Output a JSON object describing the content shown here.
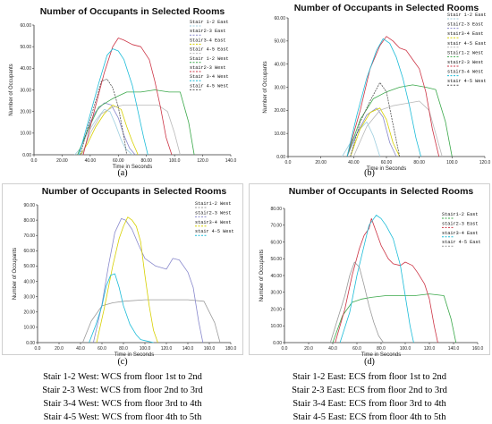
{
  "chart_data": [
    {
      "id": "a",
      "caption": "(a)",
      "type": "line",
      "title": "Number of Occupants in Selected Rooms",
      "xlabel": "Time in Seconds",
      "ylabel": "Number of Occupants",
      "xlim": [
        0,
        140
      ],
      "ylim": [
        0,
        60
      ],
      "xticks": [
        "0.0",
        "20.00",
        "40.00",
        "60.00",
        "80.00",
        "100.0",
        "120.0",
        "140.0"
      ],
      "yticks": [
        "0.00",
        "10.00",
        "20.00",
        "30.00",
        "40.00",
        "50.00",
        "60.00"
      ],
      "legend_position": "top-right",
      "grid": false,
      "series": [
        {
          "name": "Stair 1-2 East",
          "color": "#9ecfe0",
          "dash": "none",
          "x": [
            29,
            33,
            38,
            44,
            50,
            54,
            58,
            62,
            65,
            70
          ],
          "y": [
            0,
            3,
            10,
            16,
            21,
            20,
            14,
            7,
            3,
            0
          ]
        },
        {
          "name": "stair2-3 East",
          "color": "#8888cc",
          "dash": "none",
          "x": [
            31,
            35,
            40,
            44,
            50,
            55,
            60,
            64,
            68,
            72
          ],
          "y": [
            0,
            6,
            15,
            20,
            24,
            23,
            17,
            9,
            3,
            0
          ]
        },
        {
          "name": "Stair3-4 East",
          "color": "#d7d000",
          "dash": "none",
          "x": [
            33,
            38,
            44,
            50,
            56,
            62,
            66,
            70,
            74
          ],
          "y": [
            0,
            5,
            13,
            19,
            23,
            21,
            13,
            6,
            0
          ]
        },
        {
          "name": "Stair 4-5 East",
          "color": "#b8b8b8",
          "dash": "none",
          "x": [
            34,
            40,
            48,
            56,
            64,
            72,
            80,
            88,
            95,
            100,
            104
          ],
          "y": [
            0,
            10,
            19,
            22,
            23,
            23,
            23,
            23,
            20,
            10,
            0
          ]
        },
        {
          "name": "Stair 1-2 West",
          "color": "#3aa84a",
          "dash": "none",
          "x": [
            31,
            38,
            46,
            56,
            66,
            76,
            86,
            96,
            104,
            110,
            114
          ],
          "y": [
            0,
            11,
            22,
            26,
            29,
            29,
            30,
            29,
            29,
            15,
            0
          ]
        },
        {
          "name": "stair2-3 West",
          "color": "#cc3344",
          "dash": "none",
          "x": [
            35,
            42,
            50,
            56,
            60,
            64,
            70,
            76,
            82,
            86,
            90,
            94,
            98
          ],
          "y": [
            0,
            18,
            38,
            50,
            54,
            53,
            51,
            50,
            44,
            34,
            22,
            8,
            0
          ]
        },
        {
          "name": "Stair 3-4 West",
          "color": "#1cbcd8",
          "dash": "none",
          "x": [
            32,
            38,
            46,
            52,
            56,
            60,
            64,
            70,
            74,
            78,
            81
          ],
          "y": [
            0,
            14,
            33,
            46,
            49,
            48,
            44,
            32,
            20,
            8,
            0
          ]
        },
        {
          "name": "stair 4-5 West",
          "color": "#555555",
          "dash": "2,1",
          "x": [
            33,
            38,
            44,
            48,
            52,
            56,
            60,
            64,
            66
          ],
          "y": [
            0,
            12,
            25,
            34,
            35,
            31,
            22,
            8,
            0
          ]
        }
      ]
    },
    {
      "id": "b",
      "caption": "(b)",
      "type": "line",
      "title": "Number of Occupants in Selected Rooms",
      "xlabel": "Time in Seconds",
      "ylabel": "Number of Occupants",
      "xlim": [
        0,
        120
      ],
      "ylim": [
        0,
        60
      ],
      "xticks": [
        "0.0",
        "20.00",
        "40.00",
        "60.00",
        "80.00",
        "100.0",
        "120.0"
      ],
      "yticks": [
        "0.00",
        "10.00",
        "20.00",
        "30.00",
        "40.00",
        "50.00",
        "60.00"
      ],
      "legend_position": "top-right",
      "grid": false,
      "series": [
        {
          "name": "Stair 1-2 East",
          "color": "#9ecfe0",
          "dash": "none",
          "x": [
            33,
            38,
            44,
            48,
            52,
            56
          ],
          "y": [
            0,
            6,
            12,
            15,
            9,
            0
          ]
        },
        {
          "name": "stair2-3 East",
          "color": "#8888cc",
          "dash": "none",
          "x": [
            36,
            42,
            48,
            54,
            58,
            62,
            66
          ],
          "y": [
            0,
            10,
            18,
            21,
            17,
            6,
            0
          ]
        },
        {
          "name": "stair3-4 East",
          "color": "#d7d000",
          "dash": "none",
          "x": [
            38,
            44,
            50,
            56,
            60,
            64,
            68
          ],
          "y": [
            0,
            12,
            19,
            21,
            16,
            6,
            0
          ]
        },
        {
          "name": "stair 4-5 East",
          "color": "#b8b8b8",
          "dash": "none",
          "x": [
            40,
            48,
            56,
            64,
            72,
            80,
            86,
            90,
            94
          ],
          "y": [
            0,
            13,
            20,
            22,
            23,
            24,
            20,
            10,
            0
          ]
        },
        {
          "name": "Stair1-2 West",
          "color": "#3aa84a",
          "dash": "none",
          "x": [
            36,
            44,
            52,
            60,
            68,
            76,
            84,
            90,
            96,
            100
          ],
          "y": [
            0,
            16,
            25,
            28,
            30,
            31,
            30,
            29,
            15,
            0
          ]
        },
        {
          "name": "stair2-3 West",
          "color": "#cc3344",
          "dash": "none",
          "x": [
            36,
            44,
            50,
            56,
            60,
            64,
            68,
            72,
            76,
            80,
            84,
            88,
            92
          ],
          "y": [
            0,
            20,
            38,
            48,
            52,
            50,
            47,
            46,
            42,
            38,
            28,
            12,
            0
          ]
        },
        {
          "name": "stair3-4 West",
          "color": "#1cbcd8",
          "dash": "none",
          "x": [
            36,
            42,
            48,
            54,
            58,
            62,
            66,
            70,
            74,
            78,
            81
          ],
          "y": [
            0,
            18,
            34,
            46,
            51,
            49,
            43,
            34,
            22,
            8,
            0
          ]
        },
        {
          "name": "stair 4-5 West",
          "color": "#555555",
          "dash": "2,1",
          "x": [
            38,
            44,
            50,
            56,
            60,
            64,
            68
          ],
          "y": [
            0,
            15,
            24,
            32,
            28,
            14,
            0
          ]
        }
      ]
    },
    {
      "id": "c",
      "caption": "(c)",
      "type": "line",
      "title": "Number of Occupants in Selected Rooms",
      "xlabel": "Time in Seconds",
      "ylabel": "Number of Occupants",
      "xlim": [
        0,
        180
      ],
      "ylim": [
        0,
        90
      ],
      "xticks": [
        "0.0",
        "20.0",
        "40.0",
        "60.0",
        "80.0",
        "100.0",
        "120.0",
        "140.0",
        "160.0",
        "180.0"
      ],
      "yticks": [
        "0.00",
        "10.00",
        "20.00",
        "30.00",
        "40.00",
        "50.00",
        "60.00",
        "70.00",
        "80.00",
        "90.00"
      ],
      "legend_position": "top-right",
      "grid": false,
      "series": [
        {
          "name": "Stair1-2 West",
          "color": "#9b9b9b",
          "dash": "none",
          "x": [
            42,
            50,
            60,
            70,
            80,
            100,
            120,
            140,
            155,
            165,
            170
          ],
          "y": [
            0,
            14,
            24,
            26,
            27,
            28,
            28,
            28,
            27,
            13,
            0
          ]
        },
        {
          "name": "stair2-3 West",
          "color": "#8888cc",
          "dash": "none",
          "x": [
            52,
            60,
            66,
            72,
            78,
            82,
            88,
            94,
            100,
            110,
            120,
            126,
            132,
            140,
            145,
            150,
            154
          ],
          "y": [
            0,
            25,
            50,
            72,
            81,
            80,
            74,
            64,
            55,
            50,
            48,
            55,
            54,
            46,
            36,
            14,
            0
          ]
        },
        {
          "name": "stair3-4 West",
          "color": "#d7d000",
          "dash": "none",
          "x": [
            55,
            62,
            70,
            76,
            80,
            84,
            88,
            92,
            96,
            100,
            104,
            108,
            112
          ],
          "y": [
            0,
            22,
            50,
            68,
            76,
            82,
            80,
            76,
            66,
            44,
            24,
            8,
            0
          ]
        },
        {
          "name": "stair 4-5 West",
          "color": "#1cbcd8",
          "dash": "none",
          "x": [
            48,
            54,
            60,
            64,
            68,
            72,
            76,
            80,
            86,
            92,
            96,
            102,
            108
          ],
          "y": [
            0,
            11,
            24,
            37,
            44,
            45,
            36,
            24,
            12,
            5,
            2,
            1,
            0
          ]
        }
      ]
    },
    {
      "id": "d",
      "caption": "(d)",
      "type": "line",
      "title": "Number of Occupants in Selected Rooms",
      "xlabel": "Time in Seconds",
      "ylabel": "Number of Occupants",
      "xlim": [
        0,
        160
      ],
      "ylim": [
        0,
        80
      ],
      "xticks": [
        "0.0",
        "20.0",
        "40.0",
        "60.0",
        "80.0",
        "100.0",
        "120.0",
        "140.0",
        "160.0"
      ],
      "yticks": [
        "0.00",
        "10.00",
        "20.00",
        "30.00",
        "40.00",
        "50.00",
        "60.00",
        "70.00",
        "80.00"
      ],
      "legend_position": "top-right",
      "grid": false,
      "series": [
        {
          "name": "Stair1-2 East",
          "color": "#3aa84a",
          "dash": "none",
          "x": [
            40,
            48,
            56,
            64,
            72,
            84,
            96,
            108,
            120,
            132,
            138,
            142
          ],
          "y": [
            0,
            16,
            24,
            26,
            27,
            28,
            28,
            28,
            29,
            28,
            14,
            0
          ]
        },
        {
          "name": "stair2-3 East",
          "color": "#cc3344",
          "dash": "none",
          "x": [
            42,
            50,
            56,
            62,
            66,
            70,
            72,
            76,
            80,
            86,
            90,
            96,
            100,
            106,
            110,
            116,
            120,
            124,
            127
          ],
          "y": [
            0,
            20,
            40,
            56,
            64,
            68,
            74,
            66,
            58,
            50,
            47,
            46,
            48,
            46,
            42,
            35,
            26,
            10,
            0
          ]
        },
        {
          "name": "stair3-4 East",
          "color": "#1cbcd8",
          "dash": "none",
          "x": [
            46,
            54,
            60,
            66,
            70,
            74,
            76,
            80,
            84,
            90,
            96,
            100,
            104,
            107
          ],
          "y": [
            0,
            18,
            40,
            58,
            70,
            74,
            76,
            74,
            70,
            62,
            46,
            28,
            10,
            0
          ]
        },
        {
          "name": "stair 4-5 East",
          "color": "#999999",
          "dash": "none",
          "x": [
            38,
            44,
            50,
            54,
            58,
            62,
            66,
            70,
            74,
            78,
            82
          ],
          "y": [
            0,
            14,
            28,
            40,
            48,
            45,
            34,
            22,
            12,
            4,
            0
          ]
        }
      ]
    }
  ],
  "notes_left": [
    "Stair 1-2 West: WCS from floor 1st to 2nd",
    "Stair 2-3 West: WCS from floor 2nd to 3rd",
    "Stair 3-4 West: WCS from floor 3rd to 4th",
    "Stair 4-5 West: WCS from floor 4th to 5th"
  ],
  "notes_right": [
    "Stair 1-2 East: ECS from floor 1st to 2nd",
    "Stair 2-3 East: ECS from floor 2nd to 3rd",
    "Stair 3-4 East: ECS from floor 3rd to 4th",
    "Stair 4-5 East: ECS from floor 4th to 5th"
  ]
}
